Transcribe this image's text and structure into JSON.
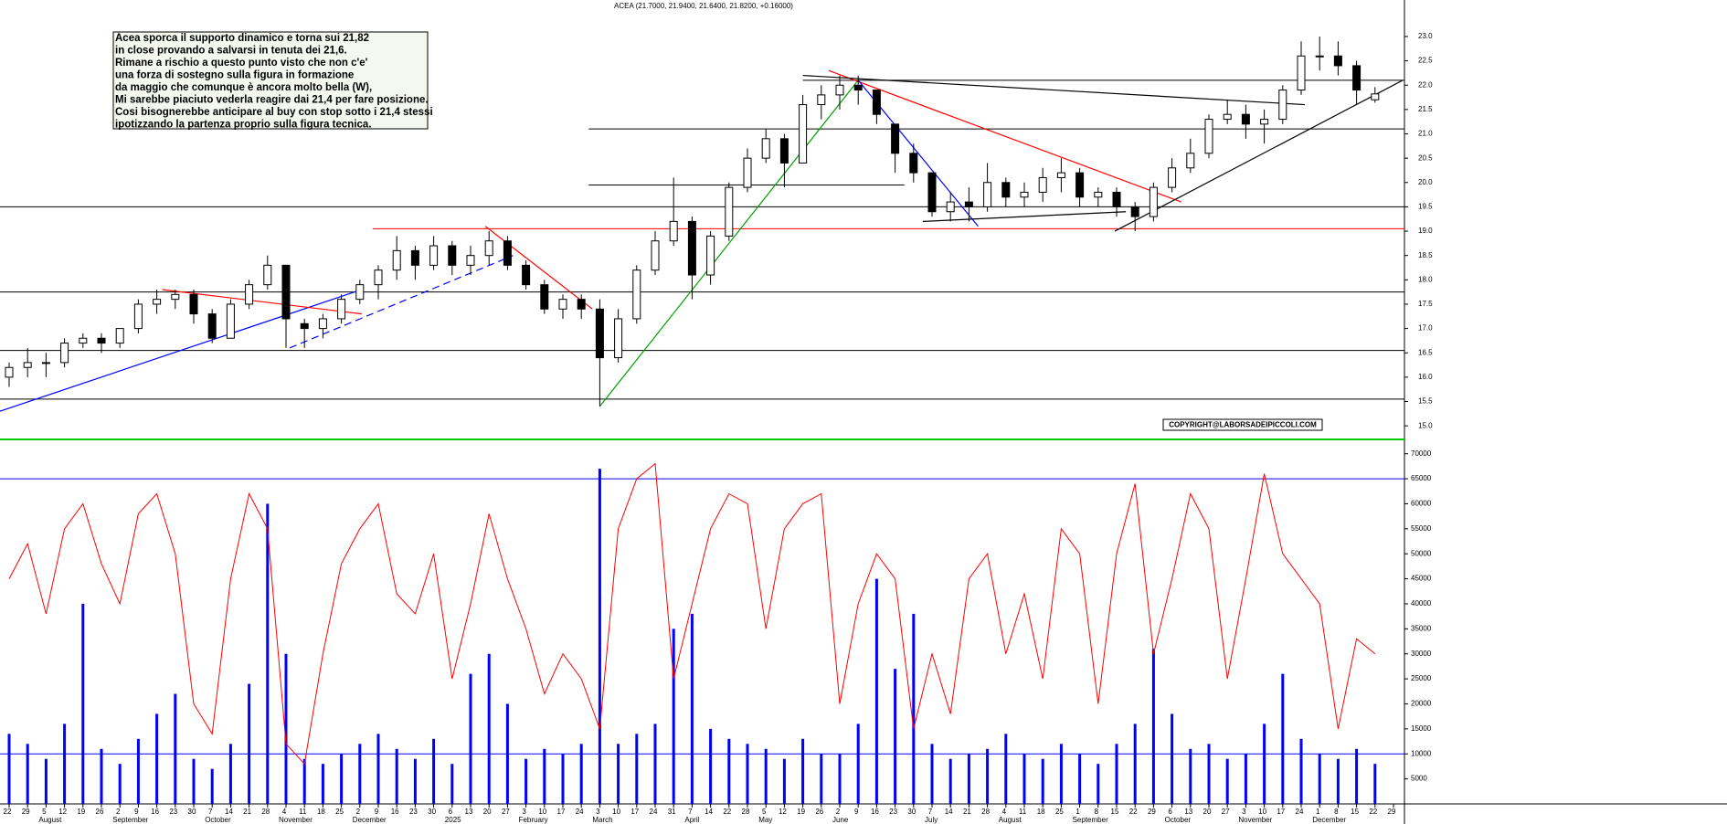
{
  "chart_data": {
    "type": "candlestick",
    "title": "ACEA (21.7000, 21.9400, 21.6400, 21.8200, +0.16000)",
    "annotation": [
      "Acea sporca  il supporto dinamico e torna sui 21,82",
      "in close provando a salvarsi in tenuta dei 21,6.",
      "Rimane a rischio a questo punto visto che non c'e'",
      "una forza di sostegno sulla figura in formazione",
      "da maggio che comunque è ancora molto bella (W),",
      "Mi sarebbe piaciuto vederla reagire dai 21,4 per fare posizione.",
      "Cosi bisognerebbe anticipare al buy con stop sotto i 21,4 stessi",
      "ipotizzando la partenza proprio sulla figura tecnica."
    ],
    "copyright": "COPYRIGHT@LABORSADEIPICCOLI.COM",
    "categories": [
      "22",
      "29",
      "5",
      "12",
      "19",
      "26",
      "2",
      "9",
      "16",
      "23",
      "30",
      "7",
      "14",
      "21",
      "28",
      "4",
      "11",
      "18",
      "25",
      "2",
      "9",
      "16",
      "23",
      "30",
      "6",
      "13",
      "20",
      "27",
      "3",
      "10",
      "17",
      "24",
      "3",
      "10",
      "17",
      "24",
      "31",
      "7",
      "14",
      "22",
      "28",
      "5",
      "12",
      "19",
      "26",
      "2",
      "9",
      "16",
      "23",
      "30",
      "7",
      "14",
      "21",
      "28",
      "4",
      "11",
      "18",
      "25",
      "1",
      "8",
      "15",
      "22",
      "29",
      "6",
      "13",
      "20",
      "27",
      "3",
      "10",
      "17",
      "24",
      "1",
      "8",
      "15",
      "22",
      "29"
    ],
    "months": [
      null,
      null,
      "August",
      null,
      null,
      null,
      "September",
      null,
      null,
      null,
      null,
      "October",
      null,
      null,
      null,
      "November",
      null,
      null,
      null,
      "December",
      null,
      null,
      null,
      null,
      "2025",
      null,
      null,
      null,
      "February",
      null,
      null,
      null,
      "March",
      null,
      null,
      null,
      null,
      "April",
      null,
      null,
      null,
      "May",
      null,
      null,
      null,
      "June",
      null,
      null,
      null,
      null,
      "July",
      null,
      null,
      null,
      "August",
      null,
      null,
      null,
      "September",
      null,
      null,
      null,
      null,
      "October",
      null,
      null,
      null,
      "November",
      null,
      null,
      null,
      "December",
      null,
      null,
      null,
      null
    ],
    "open": [
      16.0,
      16.2,
      16.3,
      16.3,
      16.7,
      16.8,
      16.7,
      17.0,
      17.5,
      17.6,
      17.7,
      17.3,
      16.8,
      17.5,
      17.9,
      18.3,
      17.1,
      17.0,
      17.2,
      17.6,
      17.9,
      18.2,
      18.6,
      18.3,
      18.7,
      18.3,
      18.5,
      18.8,
      18.3,
      17.9,
      17.4,
      17.6,
      17.4,
      16.4,
      17.2,
      18.2,
      18.8,
      19.2,
      18.1,
      18.9,
      19.9,
      20.5,
      20.9,
      20.4,
      21.6,
      21.8,
      22.0,
      21.9,
      21.2,
      20.6,
      20.2,
      19.4,
      19.6,
      19.5,
      20.0,
      19.7,
      19.8,
      20.1,
      20.2,
      19.7,
      19.8,
      19.5,
      19.3,
      19.9,
      20.3,
      20.6,
      21.3,
      21.4,
      21.2,
      21.3,
      21.9,
      22.6,
      22.6,
      22.4,
      21.7,
      null
    ],
    "high": [
      16.3,
      16.6,
      16.5,
      16.8,
      16.9,
      16.9,
      17.0,
      17.6,
      17.8,
      17.8,
      17.8,
      17.4,
      17.6,
      18.0,
      18.5,
      18.3,
      17.2,
      17.3,
      17.7,
      18.0,
      18.3,
      18.9,
      18.7,
      18.9,
      18.8,
      18.7,
      19.0,
      18.9,
      18.4,
      18.0,
      17.7,
      17.7,
      17.6,
      17.4,
      18.3,
      19.0,
      20.1,
      19.3,
      19.0,
      20.0,
      20.7,
      21.1,
      21.0,
      21.8,
      22.0,
      22.2,
      22.2,
      21.9,
      21.2,
      20.8,
      20.2,
      19.8,
      19.9,
      20.4,
      20.1,
      20.0,
      20.3,
      20.5,
      20.3,
      19.9,
      19.9,
      19.6,
      20.0,
      20.5,
      20.9,
      21.4,
      21.7,
      21.6,
      21.5,
      22.0,
      22.9,
      23.0,
      22.9,
      22.5,
      21.96,
      null
    ],
    "low": [
      15.8,
      16.0,
      16.0,
      16.2,
      16.6,
      16.5,
      16.6,
      16.9,
      17.3,
      17.4,
      17.1,
      16.7,
      16.8,
      17.4,
      17.8,
      16.6,
      16.6,
      16.8,
      17.1,
      17.5,
      17.6,
      18.0,
      18.0,
      18.2,
      18.1,
      18.1,
      18.3,
      18.2,
      17.8,
      17.3,
      17.2,
      17.2,
      15.4,
      16.3,
      17.1,
      18.1,
      18.7,
      17.6,
      17.9,
      18.8,
      19.8,
      20.4,
      19.9,
      20.4,
      21.3,
      21.5,
      21.6,
      21.2,
      20.2,
      20.0,
      19.3,
      19.2,
      19.2,
      19.4,
      19.5,
      19.5,
      19.6,
      19.8,
      19.5,
      19.5,
      19.3,
      19.0,
      19.2,
      19.8,
      20.2,
      20.5,
      21.2,
      20.9,
      20.8,
      21.2,
      21.8,
      22.3,
      22.2,
      21.6,
      21.64,
      null
    ],
    "close": [
      16.2,
      16.3,
      16.3,
      16.7,
      16.8,
      16.7,
      17.0,
      17.5,
      17.6,
      17.7,
      17.3,
      16.8,
      17.5,
      17.9,
      18.3,
      17.2,
      17.0,
      17.2,
      17.6,
      17.9,
      18.2,
      18.6,
      18.3,
      18.7,
      18.3,
      18.5,
      18.8,
      18.3,
      17.9,
      17.4,
      17.6,
      17.4,
      16.4,
      17.2,
      18.2,
      18.8,
      19.2,
      18.1,
      18.9,
      19.9,
      20.5,
      20.9,
      20.4,
      21.6,
      21.8,
      22.0,
      21.9,
      21.4,
      20.6,
      20.2,
      19.4,
      19.6,
      19.5,
      20.0,
      19.7,
      19.8,
      20.1,
      20.2,
      19.7,
      19.8,
      19.5,
      19.3,
      19.9,
      20.3,
      20.6,
      21.3,
      21.4,
      21.2,
      21.3,
      21.9,
      22.6,
      22.6,
      22.4,
      21.9,
      21.82,
      null
    ],
    "ylim": [
      14.74,
      23.75
    ],
    "yticks": [
      {
        "value": 15,
        "label": "15.0"
      },
      {
        "value": 15.5,
        "label": "15.5"
      },
      {
        "value": 16,
        "label": "16.0"
      },
      {
        "value": 16.5,
        "label": "16.5"
      },
      {
        "value": 17,
        "label": "17.0"
      },
      {
        "value": 17.5,
        "label": "17.5"
      },
      {
        "value": 18,
        "label": "18.0"
      },
      {
        "value": 18.5,
        "label": "18.5"
      },
      {
        "value": 19,
        "label": "19.0"
      },
      {
        "value": 19.5,
        "label": "19.5"
      },
      {
        "value": 20,
        "label": "20.0"
      },
      {
        "value": 20.5,
        "label": "20.5"
      },
      {
        "value": 21,
        "label": "21.0"
      },
      {
        "value": 21.5,
        "label": "21.5"
      },
      {
        "value": 22,
        "label": "22.0"
      },
      {
        "value": 22.5,
        "label": "22.5"
      },
      {
        "value": 23,
        "label": "23.0"
      }
    ],
    "up_color": "#ffffff",
    "down_color": "#000000",
    "hlines": [
      {
        "value": 22.1,
        "color": "#000000",
        "from": 43
      },
      {
        "value": 21.1,
        "color": "#000000",
        "from": 31.4
      },
      {
        "value": 19.95,
        "color": "#000000",
        "from": 31.4,
        "to": 48.5
      },
      {
        "value": 19.5,
        "color": "#000000",
        "from": -0.5
      },
      {
        "value": 19.05,
        "color": "#ff0000",
        "from": 19.7
      },
      {
        "value": 17.75,
        "color": "#000000",
        "from": -0.5
      },
      {
        "value": 16.55,
        "color": "#000000",
        "from": -0.5
      },
      {
        "value": 15.55,
        "color": "#000000",
        "from": -0.5
      }
    ],
    "trendlines": [
      {
        "from": [
          -0.5,
          15.3
        ],
        "to": [
          19.1,
          17.8
        ],
        "color": "#0000ff"
      },
      {
        "from": [
          8.3,
          17.8
        ],
        "to": [
          19.1,
          17.3
        ],
        "color": "#ff0000"
      },
      {
        "from": [
          15.2,
          16.6
        ],
        "to": [
          27.3,
          18.5
        ],
        "color": "#0000ff",
        "dash": true
      },
      {
        "from": [
          25.8,
          19.1
        ],
        "to": [
          31.6,
          17.4
        ],
        "color": "#ff0000"
      },
      {
        "from": [
          32,
          15.4
        ],
        "to": [
          46,
          22.1
        ],
        "color": "#00a000"
      },
      {
        "from": [
          44.4,
          22.3
        ],
        "to": [
          63.5,
          19.6
        ],
        "color": "#ff0000"
      },
      {
        "from": [
          46,
          22.1
        ],
        "to": [
          52.5,
          19.1
        ],
        "color": "#0000ff"
      },
      {
        "from": [
          43,
          22.2
        ],
        "to": [
          70.2,
          21.6
        ],
        "color": "#000000"
      },
      {
        "from": [
          59.9,
          19.0
        ],
        "to": [
          75.5,
          22.1
        ],
        "color": "#000000"
      },
      {
        "from": [
          49.5,
          19.2
        ],
        "to": [
          60.5,
          19.4
        ],
        "color": "#000000"
      }
    ],
    "volume": {
      "color": "#0000ff",
      "values": [
        14000,
        12000,
        9000,
        16000,
        40000,
        11000,
        8000,
        13000,
        18000,
        22000,
        9000,
        7000,
        12000,
        24000,
        60000,
        30000,
        9000,
        8000,
        10000,
        12000,
        14000,
        11000,
        9000,
        13000,
        8000,
        26000,
        30000,
        20000,
        9000,
        11000,
        10000,
        12000,
        67000,
        12000,
        14000,
        16000,
        35000,
        38000,
        15000,
        13000,
        12000,
        11000,
        9000,
        13000,
        10000,
        10000,
        16000,
        45000,
        27000,
        38000,
        12000,
        9000,
        10000,
        11000,
        14000,
        10000,
        9000,
        12000,
        10000,
        8000,
        12000,
        16000,
        31000,
        18000,
        11000,
        12000,
        9000,
        10000,
        16000,
        26000,
        13000,
        10000,
        9000,
        11000,
        8000,
        null
      ]
    },
    "oscillator": {
      "color": "#ff0000",
      "values": [
        45000,
        52000,
        38000,
        55000,
        60000,
        48000,
        40000,
        58000,
        62000,
        50000,
        20000,
        14000,
        45000,
        62000,
        55000,
        12000,
        8000,
        30000,
        48000,
        55000,
        60000,
        42000,
        38000,
        50000,
        25000,
        40000,
        58000,
        45000,
        35000,
        22000,
        30000,
        25000,
        15000,
        55000,
        65000,
        68000,
        25000,
        40000,
        55000,
        62000,
        60000,
        35000,
        55000,
        60000,
        62000,
        20000,
        40000,
        50000,
        45000,
        15000,
        30000,
        18000,
        45000,
        50000,
        30000,
        42000,
        25000,
        55000,
        50000,
        20000,
        50000,
        64000,
        30000,
        45000,
        62000,
        55000,
        25000,
        45000,
        66000,
        50000,
        45000,
        40000,
        15000,
        33000,
        30000,
        null
      ]
    },
    "y2lim": [
      0,
      72500
    ],
    "y2ticks": [
      5000,
      10000,
      15000,
      20000,
      25000,
      30000,
      35000,
      40000,
      45000,
      50000,
      55000,
      60000,
      65000,
      70000
    ],
    "y2lines": [
      {
        "value": 65000,
        "color": "#0000ff"
      },
      {
        "value": 10000,
        "color": "#0000ff"
      }
    ]
  }
}
